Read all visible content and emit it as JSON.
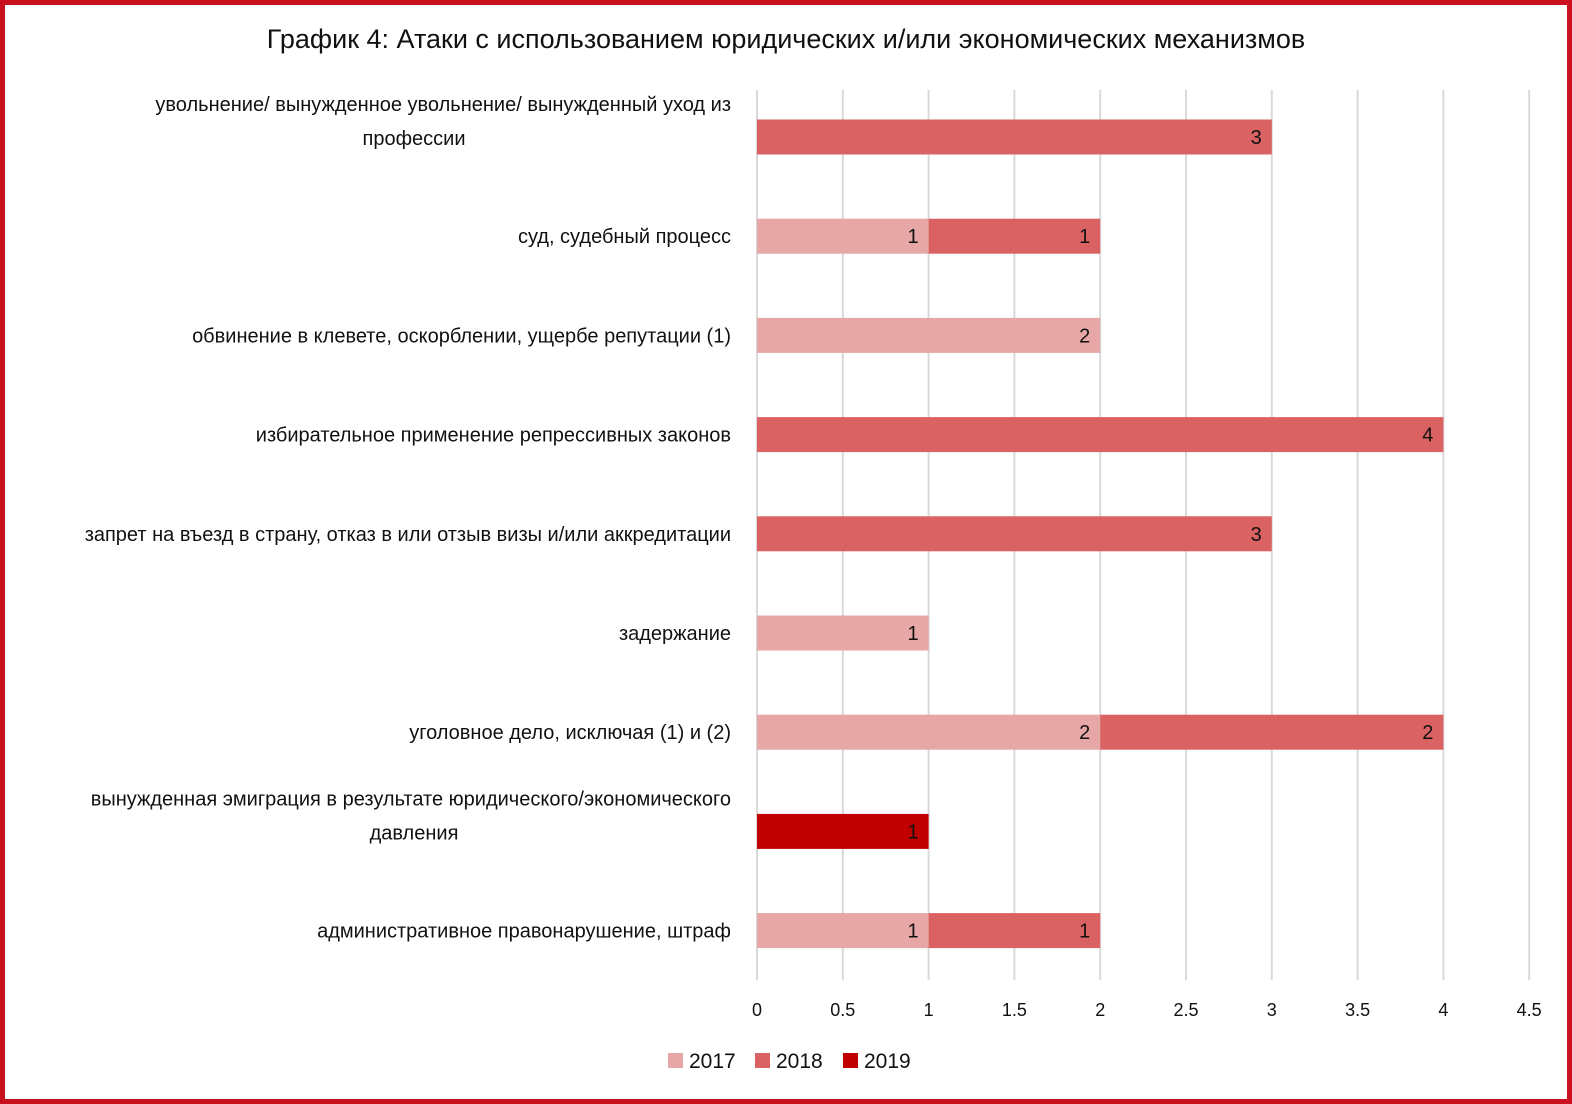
{
  "chart_data": {
    "type": "bar",
    "orientation": "horizontal",
    "stacked": true,
    "title": "График 4: Атаки с использованием юридических и/или экономических механизмов",
    "categories": [
      [
        "увольнение/ вынужденное увольнение/ вынужденный уход из",
        "профессии"
      ],
      [
        "суд, судебный процесс"
      ],
      [
        "обвинение в клевете, оскорблении, ущербе репутации (1)"
      ],
      [
        "избирательное применение репрессивных законов"
      ],
      [
        "запрет на въезд в страну, отказ в или отзыв визы и/или аккредитации"
      ],
      [
        "задержание"
      ],
      [
        "уголовное дело, исключая (1) и (2)"
      ],
      [
        "вынужденная эмиграция в результате юридического/экономического",
        "давления"
      ],
      [
        "административное правонарушение, штраф"
      ]
    ],
    "series": [
      {
        "name": "2017",
        "color": "#e8a7a7",
        "values": [
          0,
          1,
          2,
          0,
          0,
          1,
          2,
          0,
          1
        ]
      },
      {
        "name": "2018",
        "color": "#da6262",
        "values": [
          3,
          1,
          0,
          4,
          3,
          0,
          2,
          0,
          1
        ]
      },
      {
        "name": "2019",
        "color": "#c00000",
        "values": [
          0,
          0,
          0,
          0,
          0,
          0,
          0,
          1,
          0
        ]
      }
    ],
    "xlim": [
      0,
      4.5
    ],
    "xticks": [
      "0",
      "0.5",
      "1",
      "1.5",
      "2",
      "2.5",
      "3",
      "3.5",
      "4",
      "4.5"
    ],
    "grid": true,
    "legend_position": "bottom",
    "border_color": "#c8101e"
  }
}
